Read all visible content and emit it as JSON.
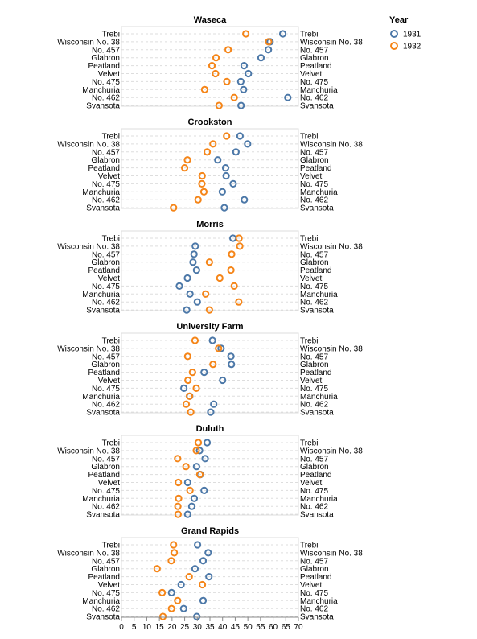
{
  "colors": {
    "1931": "#4c78a8",
    "1932": "#f58518",
    "grid": "#dddddd",
    "frame": "#dddddd"
  },
  "legend": {
    "title": "Year",
    "items": [
      "1931",
      "1932"
    ],
    "placement": "top-right"
  },
  "chart_data": {
    "type": "scatter",
    "varieties": [
      "Trebi",
      "Wisconsin No. 38",
      "No. 457",
      "Glabron",
      "Peatland",
      "Velvet",
      "No. 475",
      "Manchuria",
      "No. 462",
      "Svansota"
    ],
    "x_ticks": [
      "0",
      "5",
      "10",
      "15",
      "20",
      "25",
      "30",
      "35",
      "40",
      "45",
      "50",
      "55",
      "60",
      "65",
      "70"
    ],
    "xlim": [
      0,
      70
    ],
    "grid": true,
    "panels": [
      {
        "site": "Waseca",
        "series": [
          {
            "name": "1931",
            "values": [
              63.8,
              58.8,
              58.1,
              55.2,
              48.5,
              50.2,
              47.2,
              48.3,
              65.8,
              47.3
            ]
          },
          {
            "name": "1932",
            "values": [
              49.2,
              58.2,
              42.2,
              37.4,
              35.8,
              37.2,
              41.7,
              32.9,
              44.6,
              38.6
            ]
          }
        ]
      },
      {
        "site": "Crookston",
        "series": [
          {
            "name": "1931",
            "values": [
              46.9,
              49.9,
              45.3,
              38.1,
              41.2,
              41.4,
              44.2,
              39.9,
              48.6,
              40.7
            ]
          },
          {
            "name": "1932",
            "values": [
              41.6,
              36.2,
              33.9,
              26.1,
              25.0,
              31.9,
              31.8,
              32.6,
              30.3,
              20.6
            ]
          }
        ]
      },
      {
        "site": "Morris",
        "series": [
          {
            "name": "1931",
            "values": [
              44.1,
              29.2,
              28.7,
              28.3,
              29.7,
              26.1,
              22.9,
              27.1,
              30.0,
              25.8
            ]
          },
          {
            "name": "1932",
            "values": [
              46.5,
              46.8,
              43.6,
              34.8,
              43.3,
              38.9,
              44.6,
              33.3,
              46.4,
              34.8
            ]
          }
        ]
      },
      {
        "site": "University Farm",
        "series": [
          {
            "name": "1931",
            "values": [
              36.0,
              39.4,
              43.3,
              43.5,
              32.7,
              40.0,
              24.7,
              27.0,
              36.5,
              35.3
            ]
          },
          {
            "name": "1932",
            "values": [
              29.1,
              38.4,
              26.2,
              36.2,
              28.1,
              26.3,
              29.6,
              26.9,
              25.6,
              27.4
            ]
          }
        ]
      },
      {
        "site": "Duluth",
        "series": [
          {
            "name": "1931",
            "values": [
              33.9,
              30.9,
              33.1,
              29.7,
              31.2,
              26.2,
              32.7,
              28.8,
              27.8,
              26.2
            ]
          },
          {
            "name": "1932",
            "values": [
              30.4,
              29.6,
              22.2,
              25.5,
              31.0,
              22.5,
              27.1,
              22.6,
              22.3,
              22.4
            ]
          }
        ]
      },
      {
        "site": "Grand Rapids",
        "series": [
          {
            "name": "1931",
            "values": [
              30.1,
              34.3,
              32.3,
              29.1,
              34.6,
              23.6,
              19.8,
              32.3,
              24.6,
              29.8
            ]
          },
          {
            "name": "1932",
            "values": [
              20.6,
              20.9,
              19.7,
              14.1,
              26.8,
              32.0,
              16.1,
              22.2,
              19.8,
              16.4
            ]
          }
        ]
      }
    ]
  }
}
